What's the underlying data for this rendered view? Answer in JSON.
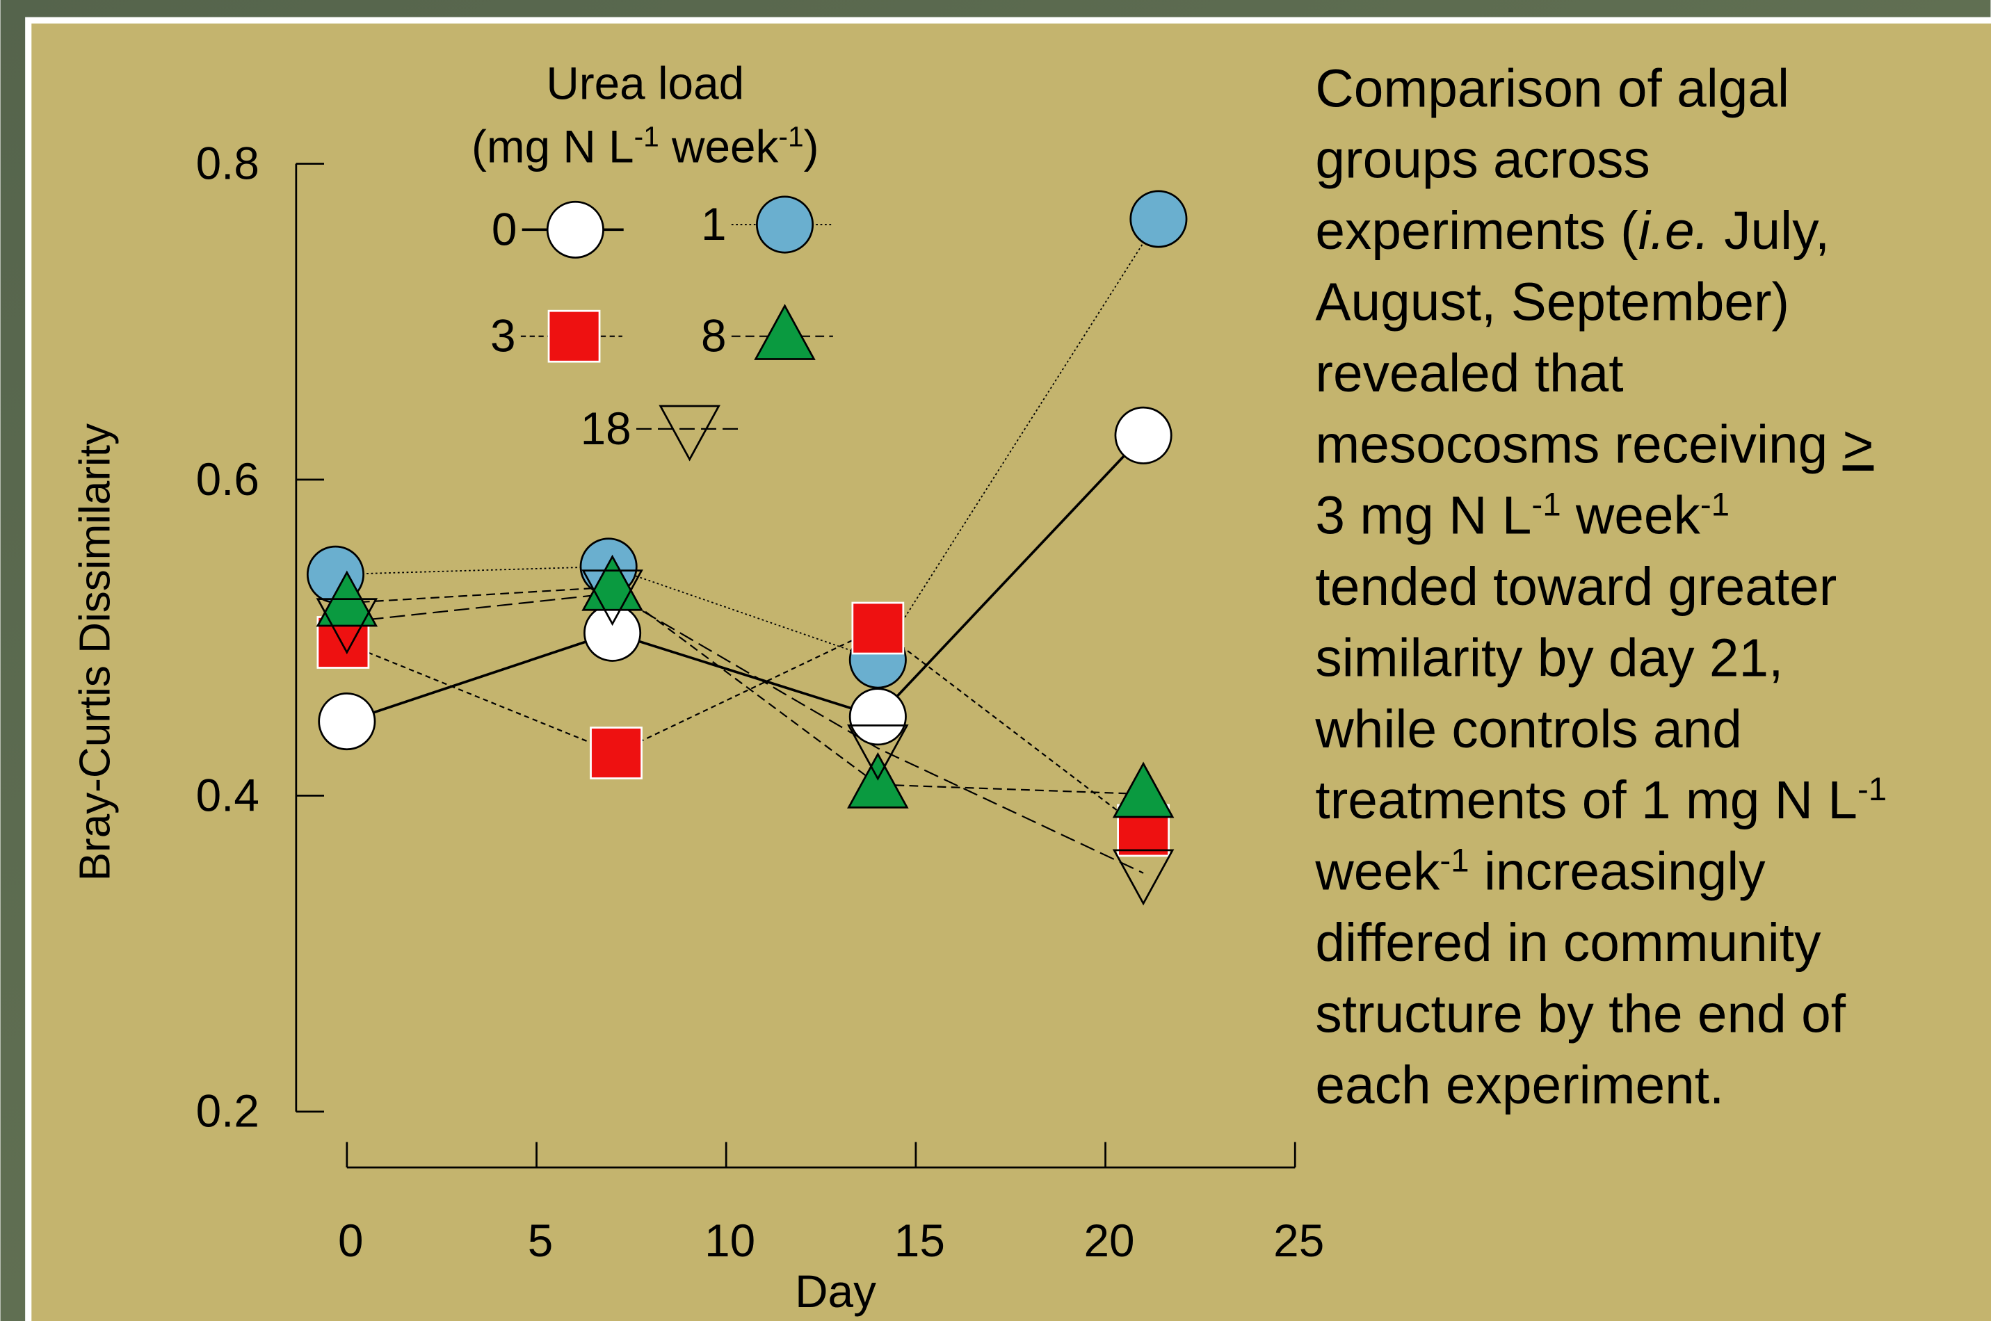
{
  "chart_data": {
    "type": "line",
    "xlabel": "Day",
    "ylabel": "Bray-Curtis Dissimilarity",
    "xlim": [
      0,
      25
    ],
    "xticks": [
      0,
      5,
      10,
      15,
      20,
      25
    ],
    "ylim": [
      0.2,
      0.8
    ],
    "yticks": [
      0.2,
      0.4,
      0.6,
      0.8
    ],
    "legend_title": [
      [
        "Urea load"
      ],
      [
        "(mg N L",
        {
          "text": "-1",
          "style": "sup"
        },
        " week",
        {
          "text": "-1",
          "style": "sup"
        },
        ")"
      ]
    ],
    "series": [
      {
        "name": "0",
        "color": "#ffffff",
        "marker": "circle",
        "dash": "solid",
        "x": [
          0,
          7,
          14,
          21
        ],
        "values": [
          0.447,
          0.503,
          0.45,
          0.628
        ]
      },
      {
        "name": "1",
        "color": "#6aafcf",
        "marker": "circle",
        "dash": "dotted",
        "x": [
          -0.3,
          6.9,
          14,
          21.4
        ],
        "values": [
          0.54,
          0.545,
          0.486,
          0.765
        ]
      },
      {
        "name": "3",
        "color": "#ee1111",
        "marker": "square",
        "dash": "short",
        "x": [
          -0.1,
          7.1,
          14,
          21
        ],
        "values": [
          0.497,
          0.427,
          0.506,
          0.378
        ]
      },
      {
        "name": "8",
        "color": "#0a9a40",
        "marker": "triangle",
        "dash": "medium",
        "x": [
          0,
          7,
          14,
          21
        ],
        "values": [
          0.522,
          0.532,
          0.407,
          0.401
        ]
      },
      {
        "name": "18",
        "color": "none",
        "marker": "triangle-down",
        "dash": "long",
        "x": [
          0,
          7,
          14,
          21
        ],
        "values": [
          0.51,
          0.528,
          0.43,
          0.351
        ]
      }
    ],
    "annotation": {
      "lines": [
        [
          "Comparison of algal"
        ],
        [
          "groups across"
        ],
        [
          "experiments (",
          {
            "text": "i.e.",
            "style": "italic"
          },
          " July,"
        ],
        [
          "August, September)"
        ],
        [
          "revealed that"
        ],
        [
          "mesocosms receiving ",
          {
            "text": ">",
            "style": "underline"
          }
        ],
        [
          "3 mg N L",
          {
            "text": "-1",
            "style": "sup"
          },
          " week",
          {
            "text": "-1",
            "style": "sup"
          }
        ],
        [
          "tended toward greater"
        ],
        [
          "similarity by day 21,"
        ],
        [
          "while controls and"
        ],
        [
          "treatments of 1 mg N L",
          {
            "text": "-1",
            "style": "sup"
          }
        ],
        [
          "week",
          {
            "text": "-1",
            "style": "sup"
          },
          " increasingly"
        ],
        [
          "differed in community"
        ],
        [
          "structure by the end of"
        ],
        [
          "each experiment."
        ]
      ]
    }
  }
}
